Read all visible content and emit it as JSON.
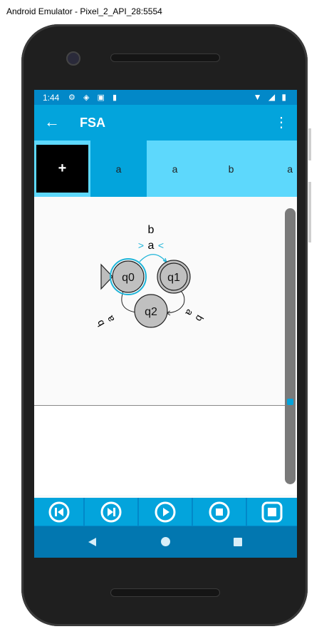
{
  "window": {
    "title": "Android Emulator - Pixel_2_API_28:5554"
  },
  "status_bar": {
    "time": "1:44",
    "left_icons": [
      "settings-icon",
      "shield-icon",
      "a-badge-icon",
      "sd-card-icon"
    ],
    "right_icons": [
      "wifi-icon",
      "signal-icon",
      "battery-icon"
    ]
  },
  "app_bar": {
    "title": "FSA"
  },
  "tape": {
    "add_label": "+",
    "cells": [
      "a",
      "a",
      "b",
      "a"
    ],
    "active_index": 0
  },
  "diagram": {
    "states": [
      {
        "name": "q0",
        "initial": true,
        "accepting": false,
        "current": true
      },
      {
        "name": "q1",
        "initial": false,
        "accepting": true,
        "current": false
      },
      {
        "name": "q2",
        "initial": false,
        "accepting": false,
        "current": false
      }
    ],
    "labels": {
      "top_b": "b",
      "top_a": "a",
      "top_arrows_left": ">",
      "top_arrows_right": "<",
      "q2_q0_a": "a",
      "q2_q0_b": "b",
      "q1_q2_a": "a",
      "q1_q2_b": "b"
    }
  },
  "controls": [
    "reset-icon",
    "step-icon",
    "play-icon",
    "stop-icon",
    "stop-all-icon"
  ],
  "colors": {
    "primary": "#03a4dc",
    "primary_dark": "#0288c8",
    "nav": "#0277b0",
    "tape_light": "#5dd8fc",
    "state_fill": "#c0c0c0"
  }
}
